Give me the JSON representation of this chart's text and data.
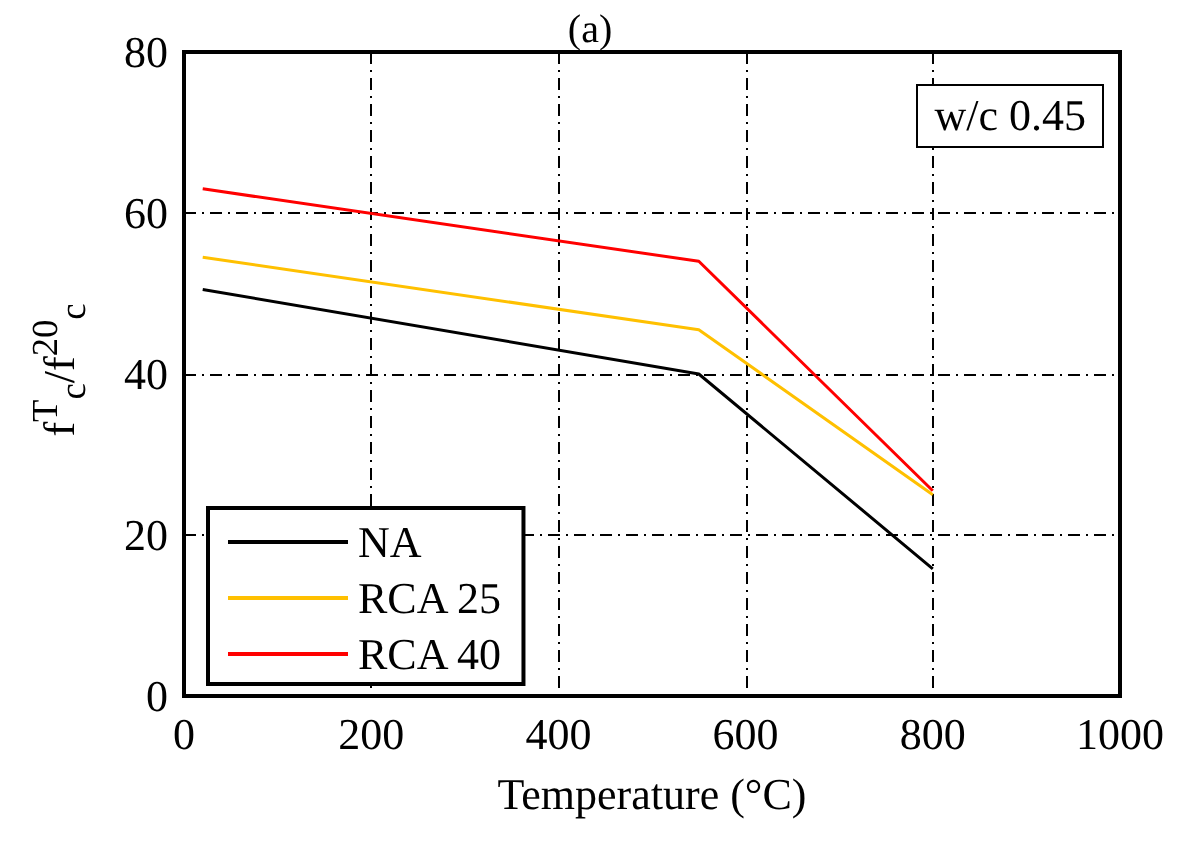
{
  "chart_data": {
    "type": "line",
    "title": "(a)",
    "xlabel": "Temperature (°C)",
    "ylabel": "f$^{T}$$_{c}$/f$^{20}$$_{c}$",
    "x": [
      20,
      550,
      800
    ],
    "series": [
      {
        "name": "NA",
        "color": "#000000",
        "values": [
          50.5,
          40,
          15.8
        ]
      },
      {
        "name": "RCA 25",
        "color": "#ffc000",
        "values": [
          54.5,
          45.5,
          25
        ]
      },
      {
        "name": "RCA 40",
        "color": "#ff0000",
        "values": [
          63,
          54,
          25.5
        ]
      }
    ],
    "xlim": [
      0,
      1000
    ],
    "xticks": [
      0,
      200,
      400,
      600,
      800,
      1000
    ],
    "ylim": [
      0,
      80
    ],
    "yticks": [
      0,
      20,
      40,
      60,
      80
    ],
    "annotations": [
      "w/c 0.45"
    ],
    "grid": true,
    "legend": "bottom left",
    "marker": "none",
    "line_style": "solid"
  }
}
